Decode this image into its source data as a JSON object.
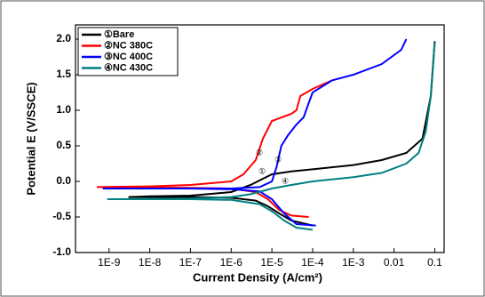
{
  "chart_data": {
    "type": "line",
    "x_label": "Current Density (A/cm²)",
    "y_label": "Potential E (V/SSCE)",
    "x_log": true,
    "xlim": [
      1.5e-10,
      0.17
    ],
    "ylim": [
      -1.0,
      2.2
    ],
    "xticks": [
      {
        "value": 1e-09,
        "label": "1E-9"
      },
      {
        "value": 1e-08,
        "label": "1E-8"
      },
      {
        "value": 1e-07,
        "label": "1E-7"
      },
      {
        "value": 1e-06,
        "label": "1E-6"
      },
      {
        "value": 1e-05,
        "label": "1E-5"
      },
      {
        "value": 0.0001,
        "label": "1E-4"
      },
      {
        "value": 0.001,
        "label": "1E-3"
      },
      0.01,
      0.1
    ],
    "yticks": [
      {
        "value": -1.0,
        "label": "-1.0"
      },
      -0.5,
      {
        "value": 0.0,
        "label": "0.0"
      },
      0.5,
      {
        "value": 1.0,
        "label": "1.0"
      },
      1.5,
      {
        "value": 2.0,
        "label": "2.0"
      }
    ],
    "legend": "upper left",
    "annotations": [
      "①",
      "②",
      "③",
      "④"
    ],
    "series": [
      {
        "name": "①Bare",
        "color": "#000000",
        "x": [
          0.0001,
          3e-05,
          1.5e-05,
          8e-06,
          4e-06,
          1e-06,
          1e-07,
          1e-08,
          3e-09,
          1e-08,
          1e-07,
          1e-06,
          3e-06,
          1e-05,
          3e-05,
          0.0001,
          0.001,
          0.005,
          0.02,
          0.05,
          0.08,
          0.1
        ],
        "values": [
          -0.62,
          -0.55,
          -0.45,
          -0.35,
          -0.27,
          -0.23,
          -0.22,
          -0.22,
          -0.22,
          -0.21,
          -0.2,
          -0.15,
          -0.05,
          0.1,
          0.14,
          0.17,
          0.23,
          0.3,
          0.4,
          0.6,
          1.2,
          1.97
        ]
      },
      {
        "name": "②NC 380C",
        "color": "#ff0000",
        "x": [
          8e-05,
          3e-05,
          1.5e-05,
          8e-06,
          4e-06,
          1e-06,
          1e-07,
          5e-10,
          1e-08,
          1e-07,
          1e-06,
          2e-06,
          4e-06,
          6e-06,
          1e-05,
          3e-05,
          4e-05,
          5e-05,
          0.0001,
          0.0003
        ],
        "values": [
          -0.5,
          -0.48,
          -0.4,
          -0.25,
          -0.15,
          -0.1,
          -0.09,
          -0.08,
          -0.07,
          -0.05,
          0.0,
          0.1,
          0.3,
          0.6,
          0.85,
          0.95,
          1.0,
          1.2,
          1.3,
          1.42
        ]
      },
      {
        "name": "③NC 400C",
        "color": "#0000ff",
        "x": [
          0.00012,
          4e-05,
          2e-05,
          1e-05,
          5e-06,
          1e-06,
          1e-07,
          7e-10,
          1e-07,
          1e-06,
          5e-06,
          1e-05,
          1.3e-05,
          1.7e-05,
          2.5e-05,
          4e-05,
          6e-05,
          8e-05,
          0.0001,
          0.0003,
          0.001,
          0.005,
          0.015,
          0.02
        ],
        "values": [
          -0.62,
          -0.6,
          -0.45,
          -0.25,
          -0.14,
          -0.11,
          -0.1,
          -0.1,
          -0.1,
          -0.1,
          -0.08,
          0.0,
          0.2,
          0.5,
          0.65,
          0.8,
          0.9,
          1.1,
          1.25,
          1.42,
          1.5,
          1.65,
          1.85,
          2.0
        ]
      },
      {
        "name": "④NC 430C",
        "color": "#008080",
        "x": [
          0.0001,
          4e-05,
          2e-05,
          1e-05,
          5e-06,
          1e-06,
          1e-07,
          9e-10,
          1e-07,
          1e-06,
          3e-06,
          1e-05,
          3e-05,
          0.0001,
          0.001,
          0.005,
          0.02,
          0.04,
          0.06,
          0.08,
          0.1
        ],
        "values": [
          -0.68,
          -0.65,
          -0.55,
          -0.42,
          -0.32,
          -0.26,
          -0.25,
          -0.25,
          -0.24,
          -0.22,
          -0.18,
          -0.1,
          -0.05,
          0.0,
          0.06,
          0.12,
          0.25,
          0.4,
          0.7,
          1.2,
          1.95
        ]
      }
    ]
  }
}
